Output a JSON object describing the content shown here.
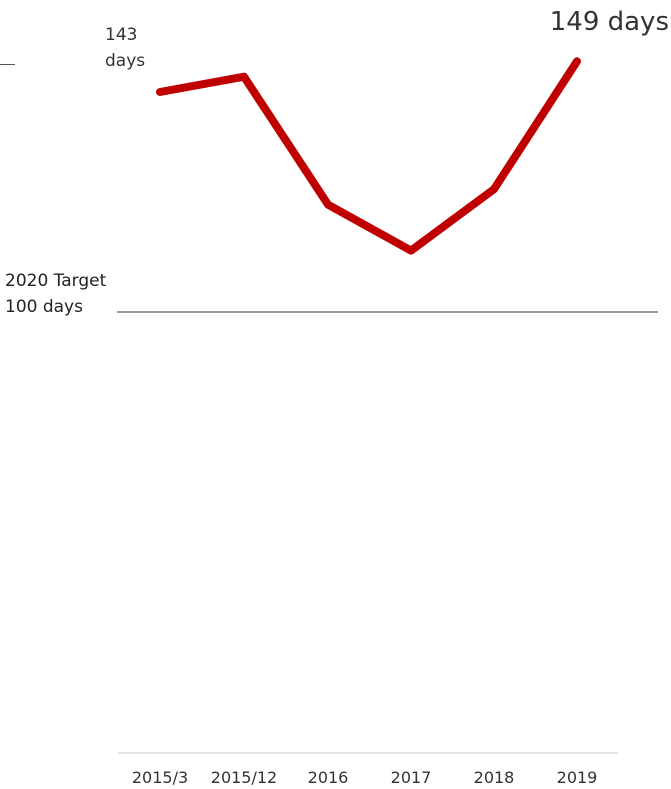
{
  "chart_data": {
    "type": "line",
    "categories": [
      "2015/3",
      "2015/12",
      "2016",
      "2017",
      "2018",
      "2019"
    ],
    "series": [
      {
        "values": [
          143,
          146,
          121,
          112,
          124,
          149
        ],
        "color": "#c00000"
      }
    ],
    "start_label": {
      "value": "143",
      "unit": "days"
    },
    "end_label": "149 days",
    "target": {
      "label": "2020 Target",
      "value_label": "100 days",
      "value": 100
    },
    "ylim": [
      0,
      160
    ],
    "grid": false,
    "colors": {
      "line": "#c00000",
      "target_line": "#7f7f7f",
      "axis": "#d9d9d9"
    }
  }
}
